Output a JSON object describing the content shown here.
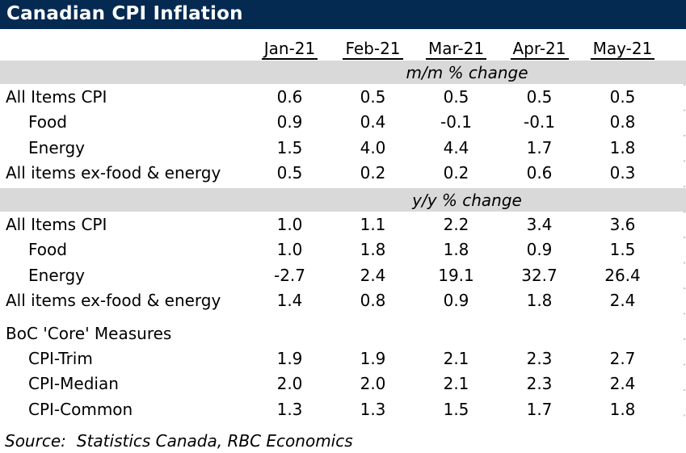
{
  "title": "Canadian CPI Inflation",
  "columns": [
    "Jan-21",
    "Feb-21",
    "Mar-21",
    "Apr-21",
    "May-21"
  ],
  "sections": [
    {
      "label": "m/m % change",
      "rows": [
        {
          "label": "All Items CPI",
          "values": [
            "0.6",
            "0.5",
            "0.5",
            "0.5",
            "0.5"
          ]
        },
        {
          "label": "Food",
          "values": [
            "0.9",
            "0.4",
            "-0.1",
            "-0.1",
            "0.8"
          ]
        },
        {
          "label": "Energy",
          "values": [
            "1.5",
            "4.0",
            "4.4",
            "1.7",
            "1.8"
          ]
        },
        {
          "label": "All items ex-food & energy",
          "values": [
            "0.5",
            "0.2",
            "0.2",
            "0.6",
            "0.3"
          ]
        }
      ]
    },
    {
      "label": "y/y % change",
      "rows": [
        {
          "label": "All Items CPI",
          "values": [
            "1.0",
            "1.1",
            "2.2",
            "3.4",
            "3.6"
          ]
        },
        {
          "label": "Food",
          "values": [
            "1.0",
            "1.8",
            "1.8",
            "0.9",
            "1.5"
          ]
        },
        {
          "label": "Energy",
          "values": [
            "-2.7",
            "2.4",
            "19.1",
            "32.7",
            "26.4"
          ]
        },
        {
          "label": "All items ex-food & energy",
          "values": [
            "1.4",
            "0.8",
            "0.9",
            "1.8",
            "2.4"
          ]
        }
      ]
    }
  ],
  "core_section": {
    "header": "BoC 'Core' Measures",
    "rows": [
      {
        "label": "CPI-Trim",
        "values": [
          "1.9",
          "1.9",
          "2.1",
          "2.3",
          "2.7"
        ]
      },
      {
        "label": "CPI-Median",
        "values": [
          "2.0",
          "2.0",
          "2.1",
          "2.3",
          "2.4"
        ]
      },
      {
        "label": "CPI-Common",
        "values": [
          "1.3",
          "1.3",
          "1.5",
          "1.7",
          "1.8"
        ]
      }
    ]
  },
  "source": {
    "prefix": "Source:",
    "text": "Statistics Canada, RBC Economics"
  },
  "colors": {
    "navy": "#042a52",
    "band_gray": "#d9d9d9",
    "text_black": "#000000"
  }
}
